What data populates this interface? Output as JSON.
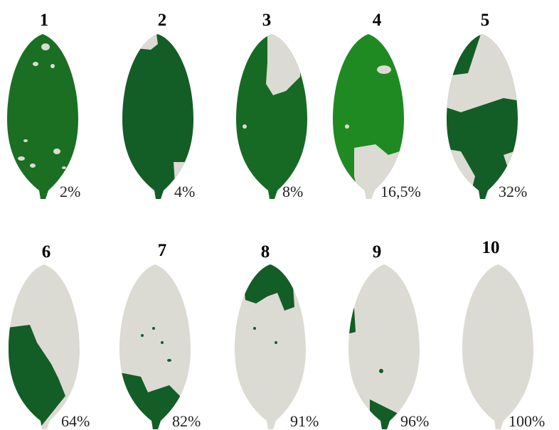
{
  "colors": {
    "healthy": "#135d26",
    "healthy_bright": "#1f8a22",
    "diseased": "#dcdbd3",
    "text": "#000000"
  },
  "leaves": [
    {
      "number": "1",
      "percent": "2%",
      "damage": 0.02,
      "tone": "medium"
    },
    {
      "number": "2",
      "percent": "4%",
      "damage": 0.04,
      "tone": "dark"
    },
    {
      "number": "3",
      "percent": "8%",
      "damage": 0.08,
      "tone": "medium"
    },
    {
      "number": "4",
      "percent": "16,5%",
      "damage": 0.165,
      "tone": "bright"
    },
    {
      "number": "5",
      "percent": "32%",
      "damage": 0.32,
      "tone": "dark"
    },
    {
      "number": "6",
      "percent": "64%",
      "damage": 0.64,
      "tone": "dark"
    },
    {
      "number": "7",
      "percent": "82%",
      "damage": 0.82,
      "tone": "dark"
    },
    {
      "number": "8",
      "percent": "91%",
      "damage": 0.91,
      "tone": "dark"
    },
    {
      "number": "9",
      "percent": "96%",
      "damage": 0.96,
      "tone": "dark"
    },
    {
      "number": "10",
      "percent": "100%",
      "damage": 1.0,
      "tone": "dark"
    }
  ]
}
